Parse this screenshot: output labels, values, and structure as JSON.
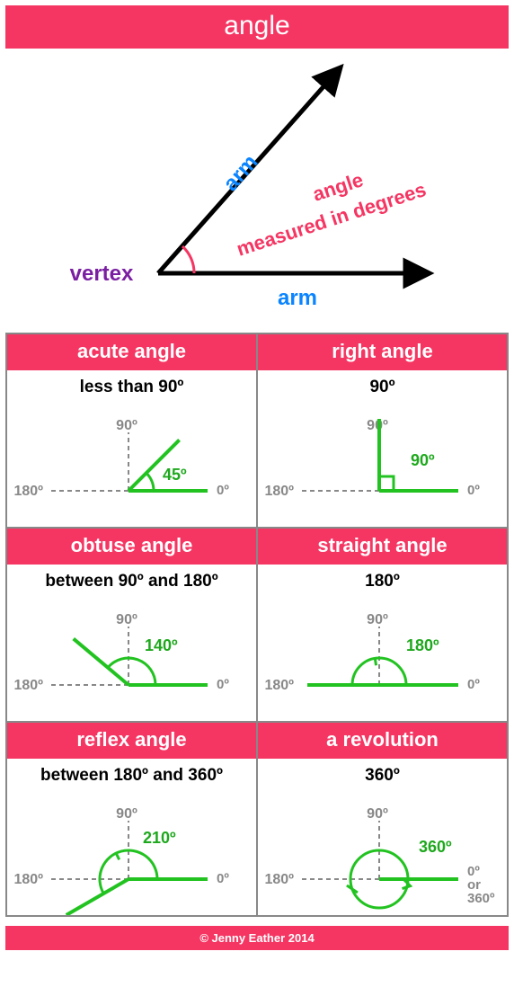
{
  "colors": {
    "accent": "#f53663",
    "arm_label": "#0a84ff",
    "vertex_label": "#7b1fa2",
    "angle_label": "#f53663",
    "ray_black": "#000000",
    "ray_green": "#22c321",
    "guide_gray": "#888888",
    "angle_text_green": "#1ea81d",
    "footer_bg": "#f53663"
  },
  "title": "angle",
  "hero": {
    "arm_label": "arm",
    "vertex_label": "vertex",
    "angle_label_line1": "angle",
    "angle_label_line2": "measured in degrees",
    "line_width": 5,
    "arrow_size": 14
  },
  "grid": [
    {
      "header": "acute angle",
      "sub": "less than 90º",
      "diagram": {
        "guides": {
          "show_90": true,
          "show_180": true,
          "label_90": "90º",
          "label_180": "180º",
          "label_0": "0º"
        },
        "angle_deg": 45,
        "angle_label": "45º",
        "arc_radius": 28,
        "arc_start": 0,
        "arc_end": 45,
        "ray2_angle": 45
      }
    },
    {
      "header": "right angle",
      "sub": "90º",
      "diagram": {
        "guides": {
          "show_90": false,
          "show_180": true,
          "label_90": "90º",
          "label_180": "180º",
          "label_0": "0º"
        },
        "angle_deg": 90,
        "angle_label": "90º",
        "right_angle_box": true,
        "ray2_angle": 90
      }
    },
    {
      "header": "obtuse angle",
      "sub": "between 90º and 180º",
      "diagram": {
        "guides": {
          "show_90": true,
          "show_180": true,
          "label_90": "90º",
          "label_180": "180º",
          "label_0": "0º"
        },
        "angle_deg": 140,
        "angle_label": "140º",
        "arc_radius": 30,
        "arc_start": 0,
        "arc_end": 140,
        "ray2_angle": 140
      }
    },
    {
      "header": "straight angle",
      "sub": "180º",
      "diagram": {
        "guides": {
          "show_90": true,
          "show_180": false,
          "label_90": "90º",
          "label_180": "180º",
          "label_0": "0º"
        },
        "angle_deg": 180,
        "angle_label": "180º",
        "arc_radius": 30,
        "arc_start": 0,
        "arc_end": 180,
        "ray2_angle": 180,
        "arrow_tick": true
      }
    },
    {
      "header": "reflex angle",
      "sub": "between 180º and 360º",
      "diagram": {
        "guides": {
          "show_90": true,
          "show_180": true,
          "label_90": "90º",
          "label_180": "180º",
          "label_0": "0º"
        },
        "angle_deg": 210,
        "angle_label": "210º",
        "arc_radius": 32,
        "arc_start": 0,
        "arc_end": 210,
        "ray2_angle": 210,
        "arrow_tick": true
      }
    },
    {
      "header": "a revolution",
      "sub": "360º",
      "diagram": {
        "guides": {
          "show_90": true,
          "show_180": true,
          "label_90": "90º",
          "label_180": "180º",
          "label_0": "0º\nor\n360º"
        },
        "angle_deg": 360,
        "angle_label": "360º",
        "arc_radius": 32,
        "full_circle": true,
        "ray2_angle": 0,
        "arrow_tick": true
      }
    }
  ],
  "footer": "© Jenny Eather 2014"
}
